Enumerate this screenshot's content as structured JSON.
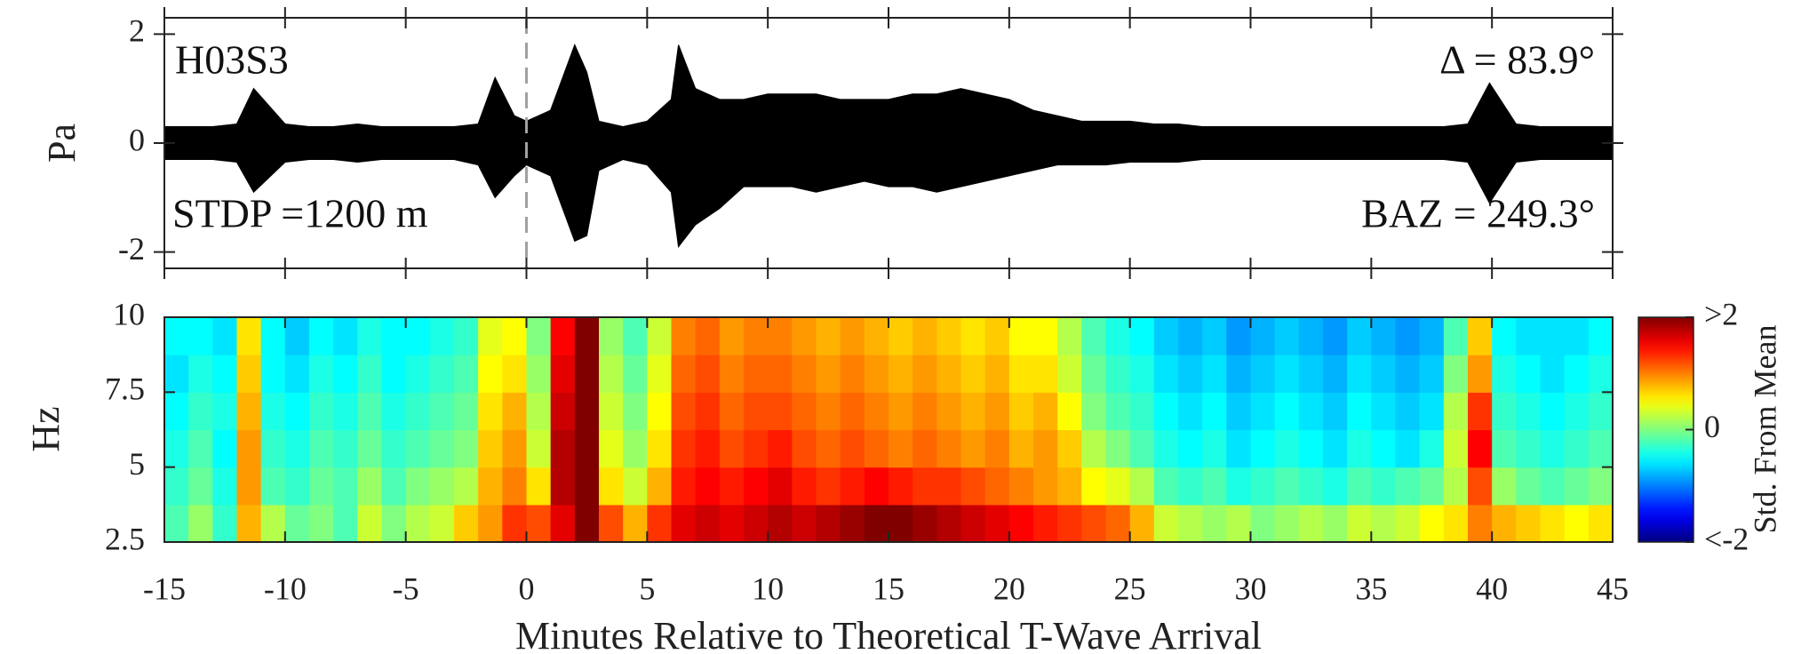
{
  "chart_data": [
    {
      "type": "area",
      "ylabel": "Pa",
      "annotations": [
        "H03S3",
        "Δ = 83.9°",
        "STDP =1200 m",
        "BAZ = 249.3°"
      ],
      "color": "#000000",
      "x": [
        -15,
        -14,
        -13,
        -12,
        -11.3,
        -10,
        -9,
        -8,
        -7,
        -6,
        -5,
        -4,
        -3,
        -2,
        -1.3,
        -0.5,
        0,
        1,
        2,
        2.5,
        3,
        4,
        5,
        6,
        6.3,
        7,
        8,
        9,
        10,
        11,
        12,
        13,
        14,
        15,
        16,
        17,
        18,
        19,
        20,
        21,
        22,
        23,
        24,
        25,
        26,
        27,
        28,
        29,
        30,
        31,
        32,
        33,
        34,
        35,
        36,
        37,
        38,
        39,
        39.9,
        41,
        42,
        43,
        44,
        45
      ],
      "upper": [
        0.3,
        0.3,
        0.3,
        0.35,
        1.0,
        0.35,
        0.3,
        0.3,
        0.35,
        0.3,
        0.3,
        0.3,
        0.3,
        0.35,
        1.2,
        0.5,
        0.4,
        0.6,
        1.8,
        1.3,
        0.4,
        0.3,
        0.4,
        0.8,
        1.8,
        1.0,
        0.8,
        0.8,
        0.9,
        0.9,
        0.9,
        0.8,
        0.8,
        0.8,
        0.9,
        0.9,
        1.0,
        0.9,
        0.8,
        0.6,
        0.5,
        0.4,
        0.4,
        0.4,
        0.35,
        0.35,
        0.3,
        0.3,
        0.3,
        0.3,
        0.3,
        0.3,
        0.3,
        0.3,
        0.3,
        0.3,
        0.3,
        0.35,
        1.1,
        0.35,
        0.3,
        0.3,
        0.3,
        0.3
      ],
      "lower": [
        -0.3,
        -0.3,
        -0.3,
        -0.35,
        -0.9,
        -0.35,
        -0.3,
        -0.3,
        -0.35,
        -0.3,
        -0.3,
        -0.3,
        -0.3,
        -0.4,
        -1.0,
        -0.6,
        -0.4,
        -0.6,
        -1.8,
        -1.7,
        -0.5,
        -0.3,
        -0.4,
        -0.9,
        -1.9,
        -1.5,
        -1.2,
        -0.8,
        -0.8,
        -0.8,
        -0.9,
        -0.8,
        -0.7,
        -0.8,
        -0.8,
        -0.9,
        -0.8,
        -0.7,
        -0.6,
        -0.5,
        -0.4,
        -0.4,
        -0.4,
        -0.35,
        -0.35,
        -0.35,
        -0.3,
        -0.3,
        -0.3,
        -0.3,
        -0.3,
        -0.3,
        -0.3,
        -0.3,
        -0.3,
        -0.3,
        -0.3,
        -0.35,
        -1.1,
        -0.35,
        -0.3,
        -0.3,
        -0.3,
        -0.3
      ],
      "xlim": [
        -15,
        45
      ],
      "xticks": [
        -15,
        -10,
        -5,
        0,
        5,
        10,
        15,
        20,
        25,
        30,
        35,
        40,
        45
      ],
      "ylim": [
        -2.3,
        2.3
      ],
      "yticks": [
        -2,
        0,
        2
      ],
      "vline": {
        "x": 0,
        "color": "#a0a0a0",
        "style": "dashed"
      }
    },
    {
      "type": "heatmap",
      "ylabel": "Hz",
      "xlabel": "Minutes Relative to Theoretical T-Wave Arrival",
      "colormap": "jet",
      "x_edges": [
        -15,
        -14,
        -13,
        -12,
        -11,
        -10,
        -9,
        -8,
        -7,
        -6,
        -5,
        -4,
        -3,
        -2,
        -1,
        0,
        1,
        2,
        3,
        4,
        5,
        6,
        7,
        8,
        9,
        10,
        11,
        12,
        13,
        14,
        15,
        16,
        17,
        18,
        19,
        20,
        21,
        22,
        23,
        24,
        25,
        26,
        27,
        28,
        29,
        30,
        31,
        32,
        33,
        34,
        35,
        36,
        37,
        38,
        39,
        40,
        41,
        42,
        43,
        44,
        45
      ],
      "y_edges": [
        2.5,
        3.75,
        5,
        6.25,
        7.5,
        8.75,
        10
      ],
      "values": [
        [
          -0.2,
          0.1,
          -0.3,
          0.8,
          0.2,
          -0.1,
          0.0,
          -0.2,
          0.3,
          0.0,
          0.2,
          0.3,
          0.7,
          0.9,
          1.3,
          1.2,
          1.6,
          2.0,
          1.2,
          0.8,
          1.3,
          1.6,
          1.7,
          1.6,
          1.7,
          1.8,
          1.7,
          1.8,
          1.9,
          2.0,
          2.0,
          1.9,
          1.8,
          1.7,
          1.6,
          1.5,
          1.4,
          1.3,
          1.2,
          1.1,
          0.8,
          0.3,
          0.2,
          0.1,
          0.2,
          0.0,
          0.1,
          0.2,
          0.1,
          0.3,
          0.2,
          0.3,
          0.5,
          0.6,
          1.0,
          0.8,
          0.7,
          0.6,
          0.5,
          0.6
        ],
        [
          -0.3,
          -0.1,
          -0.4,
          0.9,
          -0.2,
          -0.3,
          -0.1,
          -0.2,
          0.1,
          -0.2,
          0.0,
          0.1,
          0.2,
          0.8,
          1.0,
          0.6,
          1.8,
          2.0,
          0.6,
          0.3,
          0.8,
          1.4,
          1.5,
          1.4,
          1.5,
          1.6,
          1.4,
          1.3,
          1.4,
          1.5,
          1.4,
          1.3,
          1.3,
          1.2,
          1.1,
          1.0,
          0.9,
          0.8,
          0.5,
          0.4,
          0.2,
          -0.2,
          -0.3,
          -0.2,
          -0.4,
          -0.3,
          -0.2,
          -0.3,
          -0.4,
          -0.2,
          -0.3,
          -0.2,
          -0.1,
          0.2,
          1.2,
          0.1,
          -0.1,
          -0.2,
          -0.1,
          0.0
        ],
        [
          -0.4,
          -0.2,
          -0.5,
          0.9,
          -0.3,
          -0.4,
          -0.2,
          -0.3,
          -0.1,
          -0.3,
          -0.2,
          -0.1,
          0.0,
          0.7,
          0.9,
          0.3,
          1.8,
          2.0,
          0.4,
          0.1,
          0.6,
          1.3,
          1.4,
          1.2,
          1.3,
          1.4,
          1.2,
          1.1,
          1.2,
          1.1,
          1.0,
          1.1,
          1.0,
          0.9,
          1.0,
          0.8,
          0.9,
          0.7,
          0.2,
          0.0,
          -0.2,
          -0.4,
          -0.5,
          -0.4,
          -0.6,
          -0.5,
          -0.4,
          -0.5,
          -0.6,
          -0.4,
          -0.5,
          -0.6,
          -0.4,
          0.3,
          1.5,
          -0.2,
          -0.3,
          -0.4,
          -0.3,
          -0.2
        ],
        [
          -0.5,
          -0.3,
          -0.4,
          0.8,
          -0.4,
          -0.5,
          -0.3,
          -0.4,
          -0.2,
          -0.4,
          -0.3,
          -0.2,
          -0.1,
          0.6,
          0.8,
          0.2,
          1.7,
          2.0,
          0.3,
          0.0,
          0.5,
          1.2,
          1.3,
          1.1,
          1.2,
          1.2,
          1.1,
          1.0,
          1.1,
          1.0,
          0.9,
          1.0,
          0.9,
          0.8,
          0.9,
          0.7,
          0.8,
          0.5,
          0.0,
          -0.2,
          -0.3,
          -0.5,
          -0.6,
          -0.5,
          -0.7,
          -0.6,
          -0.5,
          -0.6,
          -0.7,
          -0.5,
          -0.6,
          -0.7,
          -0.6,
          0.2,
          1.3,
          -0.3,
          -0.4,
          -0.5,
          -0.4,
          -0.3
        ],
        [
          -0.6,
          -0.4,
          -0.5,
          0.7,
          -0.5,
          -0.6,
          -0.4,
          -0.5,
          -0.3,
          -0.5,
          -0.4,
          -0.3,
          -0.2,
          0.5,
          0.6,
          0.1,
          1.6,
          2.0,
          0.2,
          -0.1,
          0.4,
          1.1,
          1.2,
          1.0,
          1.1,
          1.1,
          1.0,
          0.9,
          1.0,
          0.9,
          0.8,
          0.9,
          0.8,
          0.7,
          0.8,
          0.6,
          0.6,
          0.3,
          -0.1,
          -0.3,
          -0.4,
          -0.6,
          -0.7,
          -0.6,
          -0.8,
          -0.7,
          -0.6,
          -0.7,
          -0.8,
          -0.6,
          -0.7,
          -0.8,
          -0.7,
          0.0,
          0.9,
          -0.4,
          -0.5,
          -0.6,
          -0.5,
          -0.4
        ],
        [
          -0.5,
          -0.5,
          -0.6,
          0.6,
          -0.5,
          -0.7,
          -0.5,
          -0.6,
          -0.4,
          -0.5,
          -0.5,
          -0.4,
          -0.3,
          0.4,
          0.5,
          0.0,
          1.5,
          2.0,
          0.1,
          -0.2,
          0.3,
          1.0,
          1.1,
          0.9,
          1.0,
          1.0,
          0.9,
          0.8,
          0.9,
          0.8,
          0.7,
          0.8,
          0.7,
          0.6,
          0.7,
          0.5,
          0.5,
          0.2,
          -0.2,
          -0.4,
          -0.5,
          -0.7,
          -0.8,
          -0.7,
          -0.9,
          -0.8,
          -0.7,
          -0.8,
          -0.9,
          -0.7,
          -0.8,
          -0.9,
          -0.8,
          -0.2,
          0.7,
          -0.5,
          -0.6,
          -0.6,
          -0.6,
          -0.5
        ]
      ],
      "xlim": [
        -15,
        45
      ],
      "xticks": [
        -15,
        -10,
        -5,
        0,
        5,
        10,
        15,
        20,
        25,
        30,
        35,
        40,
        45
      ],
      "ylim": [
        2.5,
        10
      ],
      "yticks": [
        2.5,
        5,
        7.5,
        10
      ],
      "colorbar": {
        "label": "Std. From Mean",
        "clim": [
          -2,
          2
        ],
        "ticks": [
          {
            "value": 2,
            "label": ">2"
          },
          0,
          {
            "value": -2,
            "label": "<-2"
          }
        ]
      }
    }
  ]
}
